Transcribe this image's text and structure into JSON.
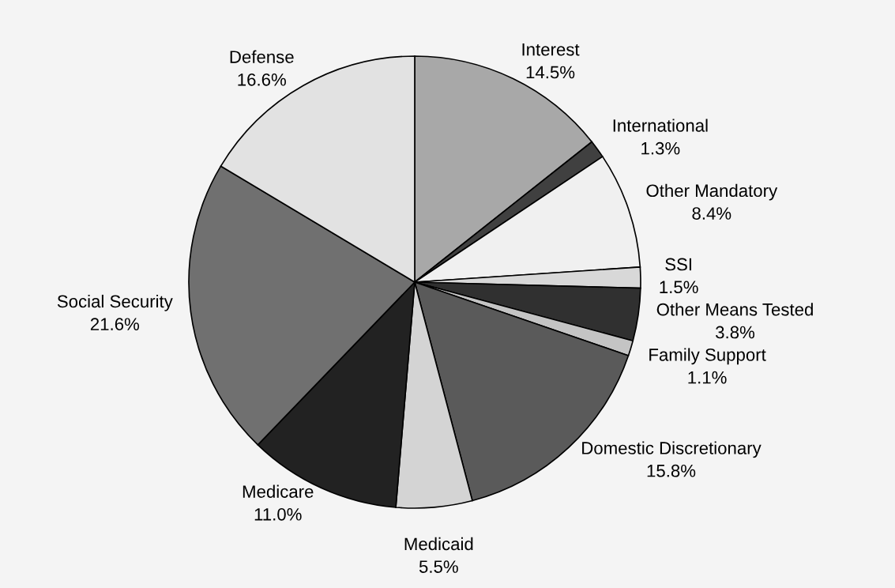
{
  "chart_data": {
    "type": "pie",
    "categories": [
      "Interest",
      "International",
      "Other Mandatory",
      "SSI",
      "Other Means Tested",
      "Family Support",
      "Domestic Discretionary",
      "Medicaid",
      "Medicare",
      "Social Security",
      "Defense"
    ],
    "values": [
      14.5,
      1.3,
      8.4,
      1.5,
      3.8,
      1.1,
      15.8,
      5.5,
      11.0,
      21.6,
      16.6
    ],
    "value_labels": [
      "14.5%",
      "1.3%",
      "8.4%",
      "1.5%",
      "3.8%",
      "1.1%",
      "15.8%",
      "5.5%",
      "11.0%",
      "21.6%",
      "16.6%"
    ],
    "colors": [
      "#a8a8a8",
      "#404040",
      "#f0f0f0",
      "#d8d8d8",
      "#303030",
      "#c4c4c4",
      "#5a5a5a",
      "#d4d4d4",
      "#222222",
      "#707070",
      "#e2e2e2"
    ],
    "legend": false
  }
}
